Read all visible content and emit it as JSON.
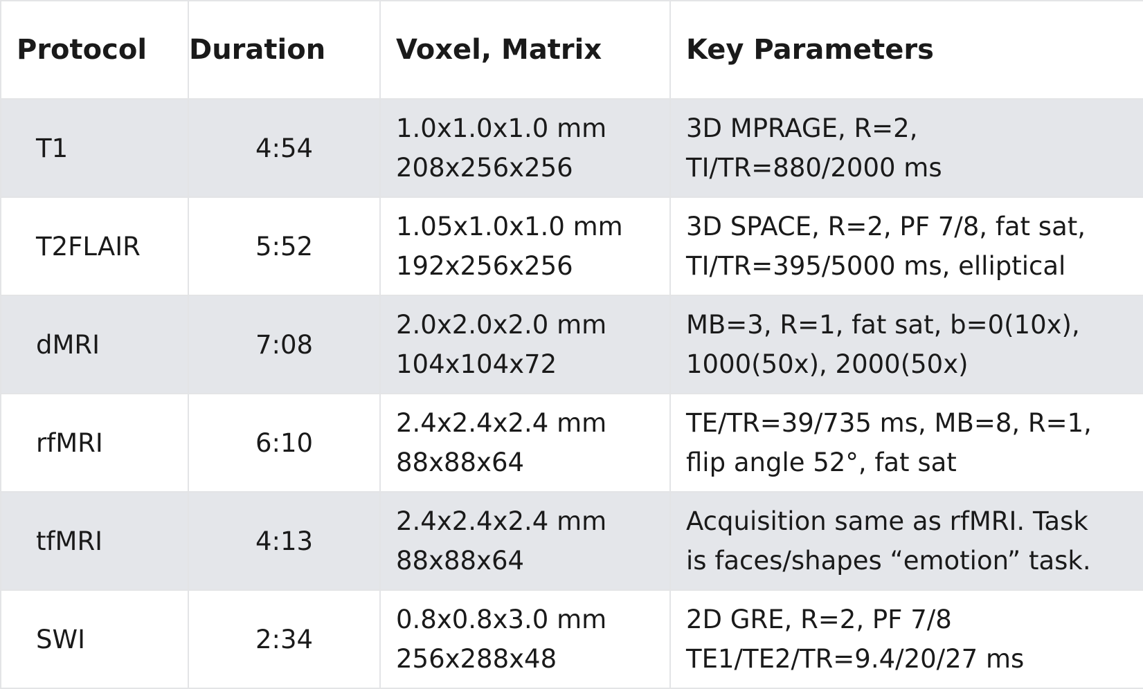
{
  "table": {
    "headers": [
      "Protocol",
      "Duration",
      "Voxel, Matrix",
      "Key Parameters"
    ],
    "rows": [
      [
        "T1",
        "4:54",
        [
          "1.0x1.0x1.0 mm",
          "208x256x256"
        ],
        [
          "3D MPRAGE, R=2,",
          "TI/TR=880/2000 ms"
        ]
      ],
      [
        "T2FLAIR",
        "5:52",
        [
          "1.05x1.0x1.0 mm",
          "192x256x256"
        ],
        [
          "3D SPACE, R=2, PF 7/8, fat sat,",
          "TI/TR=395/5000 ms, elliptical"
        ]
      ],
      [
        "dMRI",
        "7:08",
        [
          "2.0x2.0x2.0 mm",
          "104x104x72"
        ],
        [
          "MB=3, R=1, fat sat, b=0(10x),",
          "1000(50x), 2000(50x)"
        ]
      ],
      [
        "rfMRI",
        "6:10",
        [
          "2.4x2.4x2.4 mm",
          "88x88x64"
        ],
        [
          "TE/TR=39/735 ms, MB=8, R=1,",
          "flip angle 52°, fat sat"
        ]
      ],
      [
        "tfMRI",
        "4:13",
        [
          "2.4x2.4x2.4 mm",
          "88x88x64"
        ],
        [
          "Acquisition same as rfMRI. Task",
          "is faces/shapes “emotion” task."
        ]
      ],
      [
        "SWI",
        "2:34",
        [
          "0.8x0.8x3.0 mm",
          "256x288x48"
        ],
        [
          "2D GRE, R=2, PF 7/8",
          "TE1/TE2/TR=9.4/20/27 ms"
        ]
      ]
    ]
  }
}
